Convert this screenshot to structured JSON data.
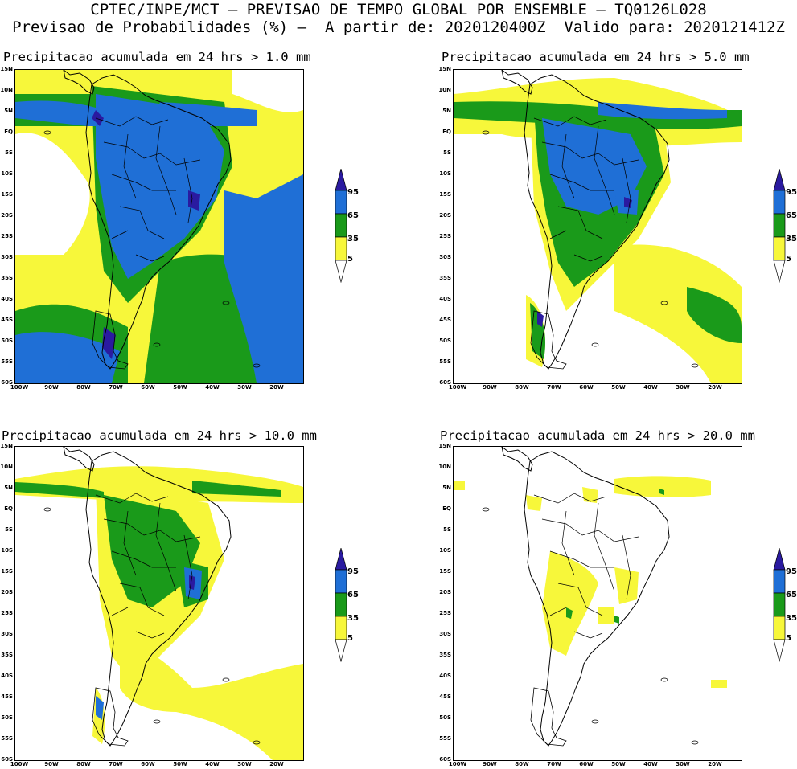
{
  "header": {
    "line1": "CPTEC/INPE/MCT – PREVISAO DE TEMPO GLOBAL POR ENSEMBLE – TQ0126L028",
    "line2": "Previsao de Probabilidades (%) –  A partir de: 2020120400Z  Valido para: 2020121412Z"
  },
  "axes": {
    "lat_labels": [
      "15N",
      "10N",
      "5N",
      "EQ",
      "5S",
      "10S",
      "15S",
      "20S",
      "25S",
      "30S",
      "35S",
      "40S",
      "45S",
      "50S",
      "55S",
      "60S"
    ],
    "lon_labels": [
      "100W",
      "90W",
      "80W",
      "70W",
      "60W",
      "50W",
      "40W",
      "30W",
      "20W"
    ]
  },
  "colorbar": {
    "levels": [
      "95",
      "65",
      "35",
      "5"
    ],
    "colors": {
      "c95": "#2a1aa0",
      "c65": "#1f6fd6",
      "c35": "#1a9a1a",
      "c5": "#f7f73a"
    }
  },
  "panels": [
    {
      "title": "Precipitacao acumulada em 24 hrs > 1.0 mm"
    },
    {
      "title": "Precipitacao acumulada em 24 hrs > 5.0 mm"
    },
    {
      "title": "Precipitacao acumulada em 24 hrs > 10.0 mm"
    },
    {
      "title": "Precipitacao acumulada em 24 hrs > 20.0 mm"
    }
  ]
}
